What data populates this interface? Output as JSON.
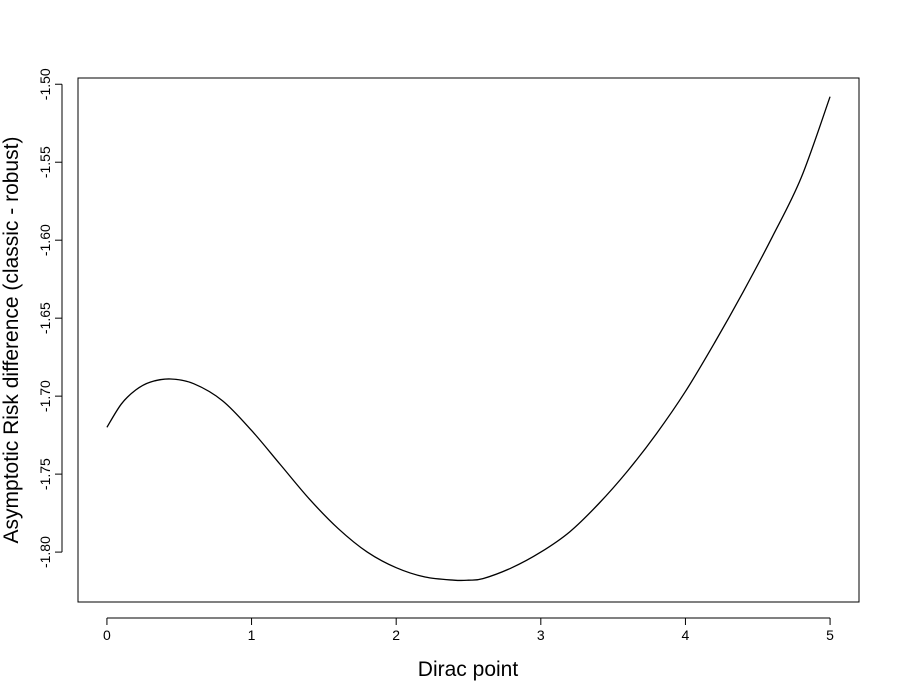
{
  "chart_data": {
    "type": "line",
    "title": "",
    "xlabel": "Dirac point",
    "ylabel": "Asymptotic Risk difference (classic - robust)",
    "xlim": [
      -0.2,
      5.2
    ],
    "ylim": [
      -1.832,
      -1.496
    ],
    "x_ticks": [
      0,
      1,
      2,
      3,
      4,
      5
    ],
    "x_tick_labels": [
      "0",
      "1",
      "2",
      "3",
      "4",
      "5"
    ],
    "y_ticks": [
      -1.8,
      -1.75,
      -1.7,
      -1.65,
      -1.6,
      -1.55,
      -1.5
    ],
    "y_tick_labels": [
      "-1.80",
      "-1.75",
      "-1.70",
      "-1.65",
      "-1.60",
      "-1.55",
      "-1.50"
    ],
    "grid": false,
    "legend": "none",
    "line_color": "#000000",
    "series": [
      {
        "x": [
          0,
          0.1,
          0.2,
          0.3,
          0.44,
          0.6,
          0.8,
          1.0,
          1.2,
          1.4,
          1.6,
          1.8,
          2.0,
          2.2,
          2.4,
          2.5,
          2.6,
          2.8,
          3.0,
          3.2,
          3.4,
          3.6,
          3.8,
          4.0,
          4.2,
          4.4,
          4.6,
          4.8,
          5.0
        ],
        "y": [
          -1.72,
          -1.705,
          -1.696,
          -1.691,
          -1.689,
          -1.692,
          -1.703,
          -1.722,
          -1.744,
          -1.766,
          -1.785,
          -1.8,
          -1.81,
          -1.816,
          -1.818,
          -1.818,
          -1.817,
          -1.81,
          -1.8,
          -1.787,
          -1.769,
          -1.748,
          -1.724,
          -1.697,
          -1.666,
          -1.633,
          -1.598,
          -1.56,
          -1.508
        ]
      }
    ]
  }
}
